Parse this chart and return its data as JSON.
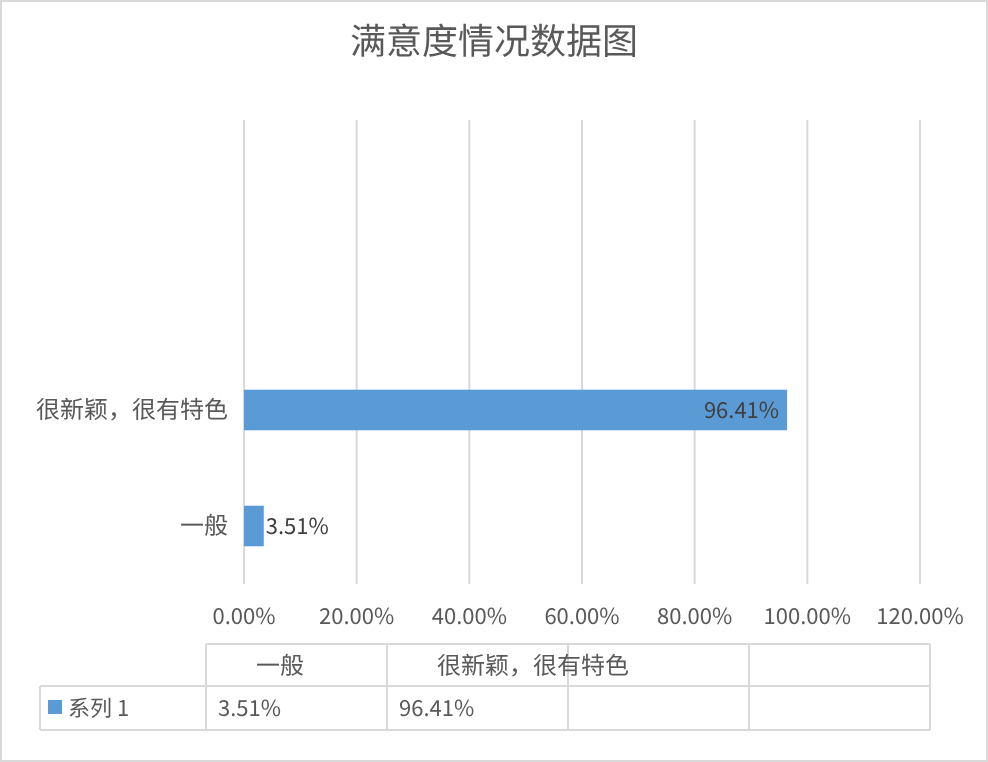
{
  "chart_data": {
    "type": "bar",
    "orientation": "horizontal",
    "title": "满意度情况数据图",
    "categories": [
      null,
      null,
      "很新颖，很有特色",
      "一般"
    ],
    "series": [
      {
        "name": "系列 1",
        "color": "#5b9bd5",
        "values": [
          null,
          null,
          96.41,
          3.51
        ],
        "value_labels": [
          null,
          null,
          "96.41%",
          "3.51%"
        ]
      }
    ],
    "xlim": [
      0,
      120
    ],
    "xticks": [
      {
        "value": 0,
        "label": "0.00%"
      },
      {
        "value": 20,
        "label": "20.00%"
      },
      {
        "value": 40,
        "label": "40.00%"
      },
      {
        "value": 60,
        "label": "60.00%"
      },
      {
        "value": 80,
        "label": "80.00%"
      },
      {
        "value": 100,
        "label": "100.00%"
      },
      {
        "value": 120,
        "label": "120.00%"
      }
    ],
    "grid": "x"
  }
}
